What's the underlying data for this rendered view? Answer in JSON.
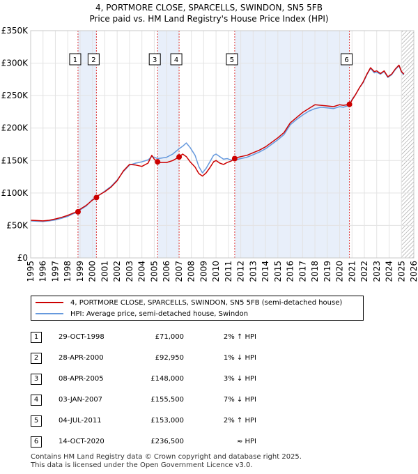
{
  "title_line1": "4, PORTMORE CLOSE, SPARCELLS, SWINDON, SN5 5FB",
  "title_line2": "Price paid vs. HM Land Registry's House Price Index (HPI)",
  "colors": {
    "price": "#cc0000",
    "hpi": "#6699dd",
    "shade": "#e8effa",
    "vline": "#dd3333"
  },
  "legend": {
    "price_label": "4, PORTMORE CLOSE, SPARCELLS, SWINDON, SN5 5FB (semi-detached house)",
    "hpi_label": "HPI: Average price, semi-detached house, Swindon"
  },
  "transactions": [
    {
      "num": "1",
      "date": "29-OCT-1998",
      "price": "£71,000",
      "hpi": "2% ↑ HPI"
    },
    {
      "num": "2",
      "date": "28-APR-2000",
      "price": "£92,950",
      "hpi": "1% ↓ HPI"
    },
    {
      "num": "3",
      "date": "08-APR-2005",
      "price": "£148,000",
      "hpi": "3% ↓ HPI"
    },
    {
      "num": "4",
      "date": "03-JAN-2007",
      "price": "£155,500",
      "hpi": "7% ↓ HPI"
    },
    {
      "num": "5",
      "date": "04-JUL-2011",
      "price": "£153,000",
      "hpi": "2% ↑ HPI"
    },
    {
      "num": "6",
      "date": "14-OCT-2020",
      "price": "£236,500",
      "hpi": "≈ HPI"
    }
  ],
  "footer": {
    "line1": "Contains HM Land Registry data © Crown copyright and database right 2025.",
    "line2": "This data is licensed under the Open Government Licence v3.0."
  },
  "chart_data": {
    "type": "line",
    "title": "4, PORTMORE CLOSE, SPARCELLS, SWINDON, SN5 5FB - Price paid vs. HM Land Registry's House Price Index (HPI)",
    "xlim": [
      1995,
      2026
    ],
    "ylim": [
      0,
      350000
    ],
    "x_ticks": [
      "1995",
      "1996",
      "1997",
      "1998",
      "1999",
      "2000",
      "2001",
      "2002",
      "2003",
      "2004",
      "2005",
      "2006",
      "2007",
      "2008",
      "2009",
      "2010",
      "2011",
      "2012",
      "2013",
      "2014",
      "2015",
      "2016",
      "2017",
      "2018",
      "2019",
      "2020",
      "2021",
      "2022",
      "2023",
      "2024",
      "2025",
      "2026"
    ],
    "y_ticks": [
      {
        "value": 0,
        "label": "£0"
      },
      {
        "value": 50000,
        "label": "£50K"
      },
      {
        "value": 100000,
        "label": "£100K"
      },
      {
        "value": 150000,
        "label": "£150K"
      },
      {
        "value": 200000,
        "label": "£200K"
      },
      {
        "value": 250000,
        "label": "£250K"
      },
      {
        "value": 300000,
        "label": "£300K"
      },
      {
        "value": 350000,
        "label": "£350K"
      }
    ],
    "sales": [
      {
        "label": "1",
        "x": 1998.83,
        "y": 71000
      },
      {
        "label": "2",
        "x": 2000.32,
        "y": 92950
      },
      {
        "label": "3",
        "x": 2005.27,
        "y": 148000
      },
      {
        "label": "4",
        "x": 2007.01,
        "y": 155500
      },
      {
        "label": "5",
        "x": 2011.51,
        "y": 153000
      },
      {
        "label": "6",
        "x": 2020.79,
        "y": 236500
      }
    ],
    "shaded_ranges": [
      [
        1998.83,
        2000.32
      ],
      [
        2005.27,
        2007.01
      ],
      [
        2011.51,
        2020.79
      ]
    ],
    "hatched_range": [
      2025.0,
      2026.0
    ],
    "series": [
      {
        "name": "HPI: Average price, semi-detached house, Swindon",
        "x": [
          1995.0,
          1995.5,
          1996.0,
          1996.5,
          1997.0,
          1997.5,
          1998.0,
          1998.5,
          1998.83,
          1999.0,
          1999.5,
          2000.0,
          2000.32,
          2000.5,
          2001.0,
          2001.5,
          2002.0,
          2002.5,
          2003.0,
          2003.5,
          2004.0,
          2004.5,
          2004.8,
          2005.0,
          2005.27,
          2005.5,
          2006.0,
          2006.5,
          2007.0,
          2007.3,
          2007.6,
          2007.9,
          2008.3,
          2008.6,
          2008.9,
          2009.2,
          2009.5,
          2009.8,
          2010.0,
          2010.3,
          2010.6,
          2010.9,
          2011.2,
          2011.51,
          2011.8,
          2012.0,
          2012.5,
          2013.0,
          2013.5,
          2014.0,
          2014.5,
          2015.0,
          2015.5,
          2016.0,
          2016.5,
          2017.0,
          2017.5,
          2018.0,
          2018.5,
          2019.0,
          2019.5,
          2020.0,
          2020.3,
          2020.6,
          2020.79,
          2021.0,
          2021.3,
          2021.6,
          2021.9,
          2022.2,
          2022.5,
          2022.8,
          2023.0,
          2023.3,
          2023.6,
          2023.9,
          2024.2,
          2024.5,
          2024.8,
          2025.0,
          2025.2
        ],
        "y": [
          57000,
          56500,
          56000,
          57000,
          58500,
          61000,
          64000,
          68500,
          70000,
          74000,
          80000,
          90000,
          93000,
          96000,
          103000,
          110000,
          120000,
          133000,
          143000,
          146000,
          148000,
          151000,
          156000,
          155000,
          153000,
          153500,
          155000,
          160000,
          168000,
          172000,
          177000,
          170000,
          158000,
          141000,
          131000,
          138000,
          148000,
          158000,
          160000,
          156000,
          152000,
          153000,
          151000,
          150000,
          152000,
          153000,
          155000,
          159000,
          163000,
          168000,
          175000,
          182000,
          190000,
          205000,
          213000,
          220000,
          226000,
          230000,
          232000,
          231000,
          230000,
          233000,
          232000,
          234000,
          237000,
          244000,
          252000,
          262000,
          270000,
          282000,
          292000,
          285000,
          286000,
          283000,
          287000,
          278000,
          282000,
          290000,
          296000,
          286000,
          282000
        ]
      },
      {
        "name": "4, PORTMORE CLOSE, SPARCELLS, SWINDON, SN5 5FB (semi-detached house)",
        "x": [
          1995.0,
          1995.5,
          1996.0,
          1996.5,
          1997.0,
          1997.5,
          1998.0,
          1998.5,
          1998.83,
          1999.0,
          1999.5,
          2000.0,
          2000.32,
          2000.5,
          2001.0,
          2001.5,
          2002.0,
          2002.5,
          2003.0,
          2003.5,
          2004.0,
          2004.5,
          2004.8,
          2005.0,
          2005.27,
          2005.5,
          2006.0,
          2006.5,
          2007.01,
          2007.3,
          2007.6,
          2007.9,
          2008.3,
          2008.6,
          2008.9,
          2009.2,
          2009.5,
          2009.8,
          2010.0,
          2010.3,
          2010.6,
          2010.9,
          2011.2,
          2011.51,
          2011.8,
          2012.0,
          2012.5,
          2013.0,
          2013.5,
          2014.0,
          2014.5,
          2015.0,
          2015.5,
          2016.0,
          2016.5,
          2017.0,
          2017.5,
          2018.0,
          2018.5,
          2019.0,
          2019.5,
          2020.0,
          2020.3,
          2020.6,
          2020.79,
          2021.0,
          2021.3,
          2021.6,
          2021.9,
          2022.2,
          2022.5,
          2022.8,
          2023.0,
          2023.3,
          2023.6,
          2023.9,
          2024.2,
          2024.5,
          2024.8,
          2025.0,
          2025.2
        ],
        "y": [
          58000,
          57500,
          57000,
          58000,
          60000,
          62500,
          65500,
          69500,
          71000,
          75000,
          81000,
          89000,
          92950,
          96500,
          102000,
          109000,
          119000,
          134000,
          144000,
          143000,
          141000,
          146000,
          158000,
          152000,
          148000,
          147000,
          147000,
          150000,
          155500,
          160000,
          156000,
          148000,
          140000,
          130000,
          126000,
          131000,
          139000,
          148000,
          150000,
          146000,
          144000,
          147000,
          149000,
          153000,
          155000,
          156000,
          158000,
          162000,
          166000,
          171000,
          178000,
          185000,
          193000,
          208000,
          216000,
          224000,
          230000,
          236000,
          235000,
          234000,
          233000,
          236000,
          235000,
          236000,
          236500,
          243000,
          252000,
          262000,
          271000,
          283000,
          293000,
          287000,
          288000,
          284000,
          288000,
          279000,
          283000,
          291000,
          297000,
          287000,
          283000
        ]
      }
    ]
  }
}
